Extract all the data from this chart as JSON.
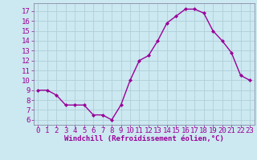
{
  "x": [
    0,
    1,
    2,
    3,
    4,
    5,
    6,
    7,
    8,
    9,
    10,
    11,
    12,
    13,
    14,
    15,
    16,
    17,
    18,
    19,
    20,
    21,
    22,
    23
  ],
  "y": [
    9.0,
    9.0,
    8.5,
    7.5,
    7.5,
    7.5,
    6.5,
    6.5,
    6.0,
    7.5,
    10.0,
    12.0,
    12.5,
    14.0,
    15.8,
    16.5,
    17.2,
    17.2,
    16.8,
    15.0,
    14.0,
    12.8,
    10.5,
    10.0
  ],
  "line_color": "#990099",
  "marker": "D",
  "marker_size": 2.0,
  "bg_color": "#cce8f0",
  "grid_color": "#b0cfd8",
  "xlabel": "Windchill (Refroidissement éolien,°C)",
  "xlabel_color": "#990099",
  "tick_color": "#990099",
  "ylim": [
    5.5,
    17.8
  ],
  "xlim": [
    -0.5,
    23.5
  ],
  "yticks": [
    6,
    7,
    8,
    9,
    10,
    11,
    12,
    13,
    14,
    15,
    16,
    17
  ],
  "xticks": [
    0,
    1,
    2,
    3,
    4,
    5,
    6,
    7,
    8,
    9,
    10,
    11,
    12,
    13,
    14,
    15,
    16,
    17,
    18,
    19,
    20,
    21,
    22,
    23
  ],
  "font_size": 6.5,
  "line_width": 1.0,
  "spine_color": "#7a7a9a"
}
